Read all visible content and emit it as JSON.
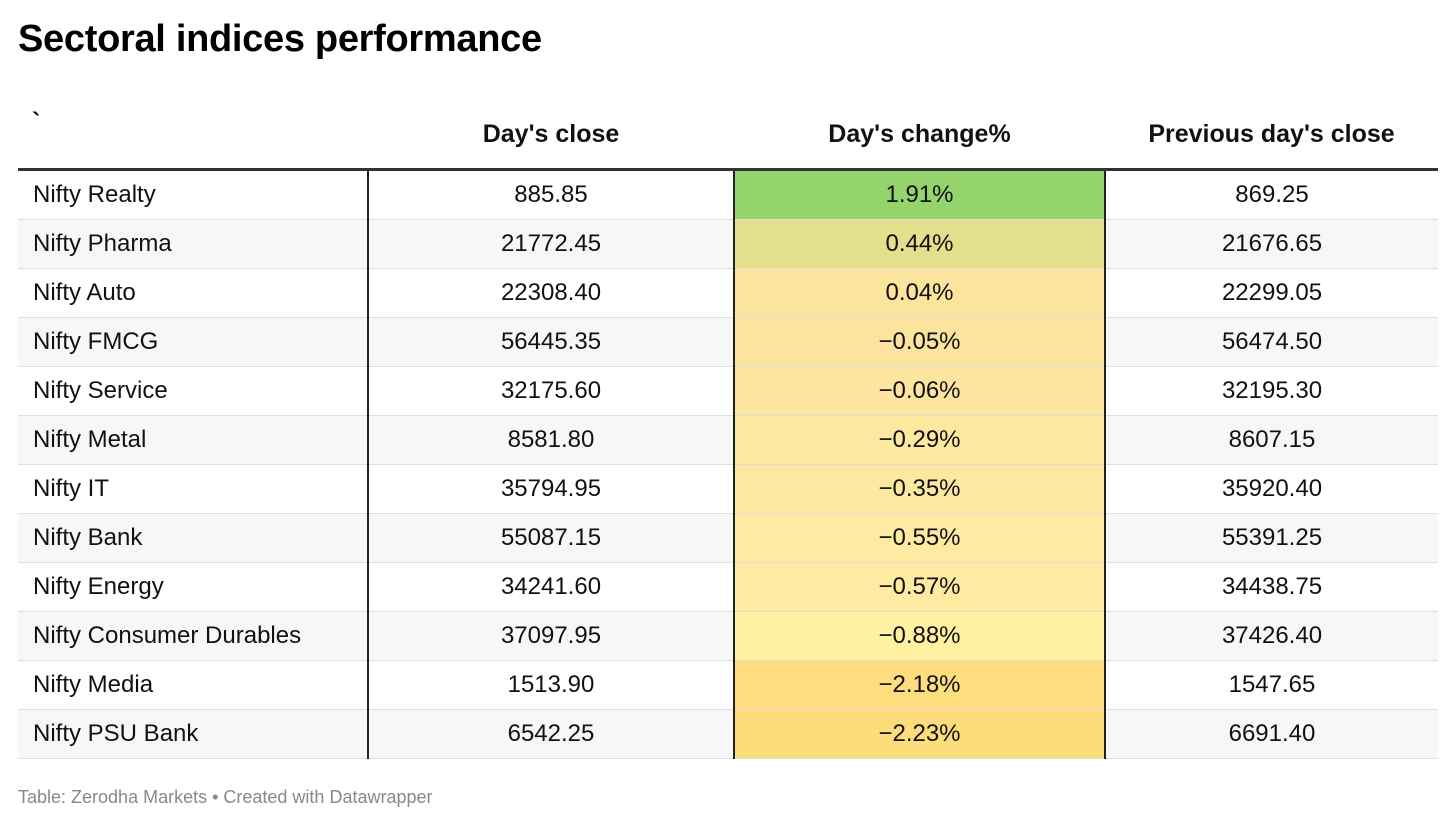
{
  "title": "Sectoral indices performance",
  "footer": "Table: Zerodha Markets • Created with Datawrapper",
  "chart_data": {
    "type": "table",
    "columns": [
      "`",
      "Day's close",
      "Day's change%",
      "Previous day's close"
    ],
    "rows": [
      {
        "name": "Nifty Realty",
        "close": "885.85",
        "change": "1.91%",
        "prev": "869.25",
        "change_value": 1.91,
        "color": "#95d36c"
      },
      {
        "name": "Nifty Pharma",
        "close": "21772.45",
        "change": "0.44%",
        "prev": "21676.65",
        "change_value": 0.44,
        "color": "#e3df8c"
      },
      {
        "name": "Nifty Auto",
        "close": "22308.40",
        "change": "0.04%",
        "prev": "22299.05",
        "change_value": 0.04,
        "color": "#fce49e"
      },
      {
        "name": "Nifty FMCG",
        "close": "56445.35",
        "change": "−0.05%",
        "prev": "56474.50",
        "change_value": -0.05,
        "color": "#fde49e"
      },
      {
        "name": "Nifty Service",
        "close": "32175.60",
        "change": "−0.06%",
        "prev": "32195.30",
        "change_value": -0.06,
        "color": "#fde5a0"
      },
      {
        "name": "Nifty Metal",
        "close": "8581.80",
        "change": "−0.29%",
        "prev": "8607.15",
        "change_value": -0.29,
        "color": "#fde8a0"
      },
      {
        "name": "Nifty IT",
        "close": "35794.95",
        "change": "−0.35%",
        "prev": "35920.40",
        "change_value": -0.35,
        "color": "#fde8a0"
      },
      {
        "name": "Nifty Bank",
        "close": "55087.15",
        "change": "−0.55%",
        "prev": "55391.25",
        "change_value": -0.55,
        "color": "#feeaa1"
      },
      {
        "name": "Nifty Energy",
        "close": "34241.60",
        "change": "−0.57%",
        "prev": "34438.75",
        "change_value": -0.57,
        "color": "#feeaa1"
      },
      {
        "name": "Nifty Consumer Durables",
        "close": "37097.95",
        "change": "−0.88%",
        "prev": "37426.40",
        "change_value": -0.88,
        "color": "#fff0a2"
      },
      {
        "name": "Nifty Media",
        "close": "1513.90",
        "change": "−2.18%",
        "prev": "1547.65",
        "change_value": -2.18,
        "color": "#fedd7f"
      },
      {
        "name": "Nifty PSU Bank",
        "close": "6542.25",
        "change": "−2.23%",
        "prev": "6691.40",
        "change_value": -2.23,
        "color": "#fddc7c"
      }
    ]
  }
}
